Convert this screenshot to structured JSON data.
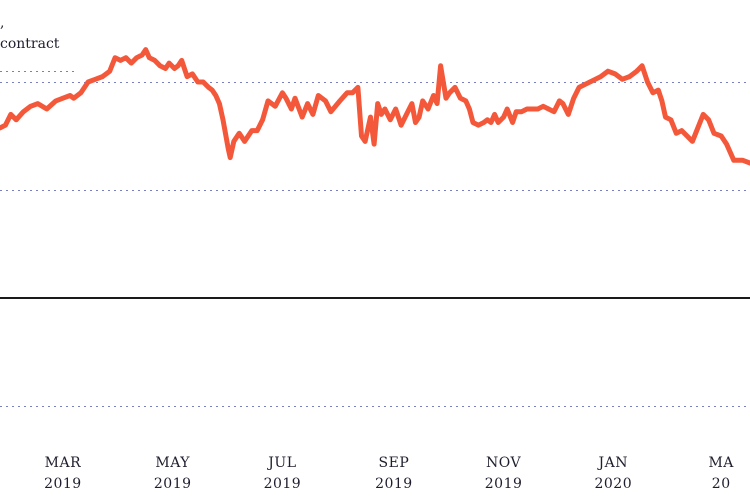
{
  "title_lines": [
    ",",
    "contract"
  ],
  "chart_data": {
    "type": "line",
    "title": "",
    "xlabel": "",
    "ylabel": "",
    "ylim": [
      -100,
      100
    ],
    "xlim": [
      "2019-01-25",
      "2020-03-17"
    ],
    "gridlines_y": [
      -80,
      -40,
      40,
      80
    ],
    "zero_line": 0,
    "grid": "horizontal dotted",
    "x_ticks": [
      {
        "date": "2019-03-01",
        "month": "MAR",
        "year": "2019"
      },
      {
        "date": "2019-05-01",
        "month": "MAY",
        "year": "2019"
      },
      {
        "date": "2019-07-01",
        "month": "JUL",
        "year": "2019"
      },
      {
        "date": "2019-09-01",
        "month": "SEP",
        "year": "2019"
      },
      {
        "date": "2019-11-01",
        "month": "NOV",
        "year": "2019"
      },
      {
        "date": "2020-01-01",
        "month": "JAN",
        "year": "2020"
      },
      {
        "date": "2020-03-01",
        "month": "MA",
        "year": "20"
      }
    ],
    "series": [
      {
        "color": "#f4583a",
        "points": [
          [
            "2019-01-25",
            63
          ],
          [
            "2019-01-28",
            64
          ],
          [
            "2019-01-31",
            68
          ],
          [
            "2019-02-03",
            66
          ],
          [
            "2019-02-07",
            69
          ],
          [
            "2019-02-11",
            71
          ],
          [
            "2019-02-15",
            72
          ],
          [
            "2019-02-20",
            70
          ],
          [
            "2019-02-25",
            73
          ],
          [
            "2019-03-01",
            74
          ],
          [
            "2019-03-05",
            75
          ],
          [
            "2019-03-07",
            74
          ],
          [
            "2019-03-11",
            76
          ],
          [
            "2019-03-15",
            80
          ],
          [
            "2019-03-19",
            81
          ],
          [
            "2019-03-23",
            82
          ],
          [
            "2019-03-27",
            84
          ],
          [
            "2019-03-30",
            89
          ],
          [
            "2019-04-02",
            88
          ],
          [
            "2019-04-05",
            89
          ],
          [
            "2019-04-08",
            87
          ],
          [
            "2019-04-11",
            89
          ],
          [
            "2019-04-14",
            90
          ],
          [
            "2019-04-16",
            92
          ],
          [
            "2019-04-18",
            89
          ],
          [
            "2019-04-21",
            88
          ],
          [
            "2019-04-24",
            86
          ],
          [
            "2019-04-27",
            85
          ],
          [
            "2019-04-29",
            87
          ],
          [
            "2019-05-02",
            85
          ],
          [
            "2019-05-04",
            86
          ],
          [
            "2019-05-06",
            88
          ],
          [
            "2019-05-09",
            82
          ],
          [
            "2019-05-12",
            83
          ],
          [
            "2019-05-15",
            80
          ],
          [
            "2019-05-18",
            80
          ],
          [
            "2019-05-21",
            78
          ],
          [
            "2019-05-23",
            77
          ],
          [
            "2019-05-25",
            75
          ],
          [
            "2019-05-27",
            72
          ],
          [
            "2019-05-29",
            66
          ],
          [
            "2019-06-01",
            55
          ],
          [
            "2019-06-02",
            52
          ],
          [
            "2019-06-04",
            58
          ],
          [
            "2019-06-07",
            61
          ],
          [
            "2019-06-10",
            58
          ],
          [
            "2019-06-14",
            62
          ],
          [
            "2019-06-17",
            62
          ],
          [
            "2019-06-20",
            66
          ],
          [
            "2019-06-23",
            73
          ],
          [
            "2019-06-27",
            71
          ],
          [
            "2019-07-01",
            76
          ],
          [
            "2019-07-03",
            74
          ],
          [
            "2019-07-06",
            70
          ],
          [
            "2019-07-08",
            74
          ],
          [
            "2019-07-12",
            67
          ],
          [
            "2019-07-15",
            72
          ],
          [
            "2019-07-18",
            68
          ],
          [
            "2019-07-21",
            75
          ],
          [
            "2019-07-25",
            73
          ],
          [
            "2019-07-28",
            69
          ],
          [
            "2019-08-02",
            73
          ],
          [
            "2019-08-06",
            76
          ],
          [
            "2019-08-09",
            76
          ],
          [
            "2019-08-12",
            78
          ],
          [
            "2019-08-14",
            60
          ],
          [
            "2019-08-16",
            58
          ],
          [
            "2019-08-19",
            67
          ],
          [
            "2019-08-21",
            57
          ],
          [
            "2019-08-23",
            72
          ],
          [
            "2019-08-25",
            68
          ],
          [
            "2019-08-27",
            70
          ],
          [
            "2019-08-30",
            66
          ],
          [
            "2019-09-02",
            70
          ],
          [
            "2019-09-05",
            64
          ],
          [
            "2019-09-08",
            68
          ],
          [
            "2019-09-11",
            72
          ],
          [
            "2019-09-13",
            65
          ],
          [
            "2019-09-15",
            67
          ],
          [
            "2019-09-17",
            73
          ],
          [
            "2019-09-20",
            70
          ],
          [
            "2019-09-23",
            75
          ],
          [
            "2019-09-25",
            72
          ],
          [
            "2019-09-27",
            86
          ],
          [
            "2019-09-28",
            82
          ],
          [
            "2019-09-30",
            74
          ],
          [
            "2019-10-02",
            76
          ],
          [
            "2019-10-05",
            78
          ],
          [
            "2019-10-08",
            74
          ],
          [
            "2019-10-11",
            73
          ],
          [
            "2019-10-13",
            70
          ],
          [
            "2019-10-15",
            65
          ],
          [
            "2019-10-18",
            64
          ],
          [
            "2019-10-21",
            65
          ],
          [
            "2019-10-23",
            66
          ],
          [
            "2019-10-25",
            65
          ],
          [
            "2019-10-27",
            68
          ],
          [
            "2019-10-29",
            65
          ],
          [
            "2019-11-01",
            67
          ],
          [
            "2019-11-03",
            70
          ],
          [
            "2019-11-06",
            65
          ],
          [
            "2019-11-08",
            69
          ],
          [
            "2019-11-11",
            69
          ],
          [
            "2019-11-14",
            70
          ],
          [
            "2019-11-17",
            70
          ],
          [
            "2019-11-20",
            70
          ],
          [
            "2019-11-23",
            71
          ],
          [
            "2019-11-26",
            70
          ],
          [
            "2019-11-29",
            69
          ],
          [
            "2019-12-02",
            73
          ],
          [
            "2019-12-04",
            72
          ],
          [
            "2019-12-07",
            68
          ],
          [
            "2019-12-10",
            74
          ],
          [
            "2019-12-13",
            78
          ],
          [
            "2019-12-16",
            79
          ],
          [
            "2019-12-19",
            80
          ],
          [
            "2019-12-22",
            81
          ],
          [
            "2019-12-25",
            82
          ],
          [
            "2019-12-29",
            84
          ],
          [
            "2020-01-02",
            83
          ],
          [
            "2020-01-06",
            81
          ],
          [
            "2020-01-10",
            82
          ],
          [
            "2020-01-14",
            84
          ],
          [
            "2020-01-17",
            86
          ],
          [
            "2020-01-20",
            80
          ],
          [
            "2020-01-23",
            76
          ],
          [
            "2020-01-26",
            77
          ],
          [
            "2020-01-28",
            73
          ],
          [
            "2020-01-30",
            67
          ],
          [
            "2020-02-02",
            66
          ],
          [
            "2020-02-05",
            61
          ],
          [
            "2020-02-08",
            62
          ],
          [
            "2020-02-11",
            60
          ],
          [
            "2020-02-14",
            58
          ],
          [
            "2020-02-17",
            63
          ],
          [
            "2020-02-20",
            68
          ],
          [
            "2020-02-23",
            66
          ],
          [
            "2020-02-26",
            61
          ],
          [
            "2020-03-01",
            60
          ],
          [
            "2020-03-04",
            57
          ],
          [
            "2020-03-08",
            51
          ],
          [
            "2020-03-13",
            51
          ],
          [
            "2020-03-17",
            50
          ]
        ]
      }
    ]
  }
}
